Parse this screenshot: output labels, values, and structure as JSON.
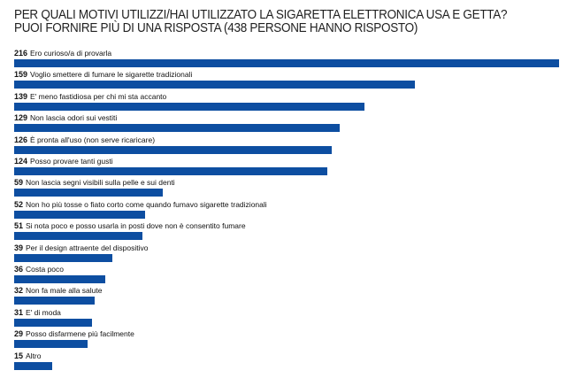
{
  "chart_data": {
    "type": "bar",
    "orientation": "horizontal",
    "title": "PER QUALI MOTIVI UTILIZZI/HAI UTILIZZATO LA SIGARETTA ELETTRONICA USA E GETTA?",
    "subtitle": "PUOI FORNIRE PIÙ DI UNA RISPOSTA (438 PERSONE HANNO RISPOSTO)",
    "categories": [
      "Ero curioso/a di provarla",
      "Voglio smettere di fumare le sigarette tradizionali",
      "E' meno fastidiosa per chi mi sta accanto",
      "Non lascia odori sui vestiti",
      "È pronta all'uso (non serve ricaricare)",
      "Posso provare tanti gusti",
      "Non lascia segni visibili sulla pelle e sui denti",
      "Non ho più tosse o fiato corto come quando fumavo sigarette tradizionali",
      "Si nota poco e posso usarla in posti dove non è consentito fumare",
      "Per il design attraente del dispositivo",
      "Costa poco",
      "Non fa male alla salute",
      "E' di moda",
      "Posso disfarmene più facilmente",
      "Altro"
    ],
    "values": [
      216,
      159,
      139,
      129,
      126,
      124,
      59,
      52,
      51,
      39,
      36,
      32,
      31,
      29,
      15
    ],
    "xlim": [
      0,
      216
    ],
    "grid": false,
    "bar_color": "#0d4ea1"
  }
}
